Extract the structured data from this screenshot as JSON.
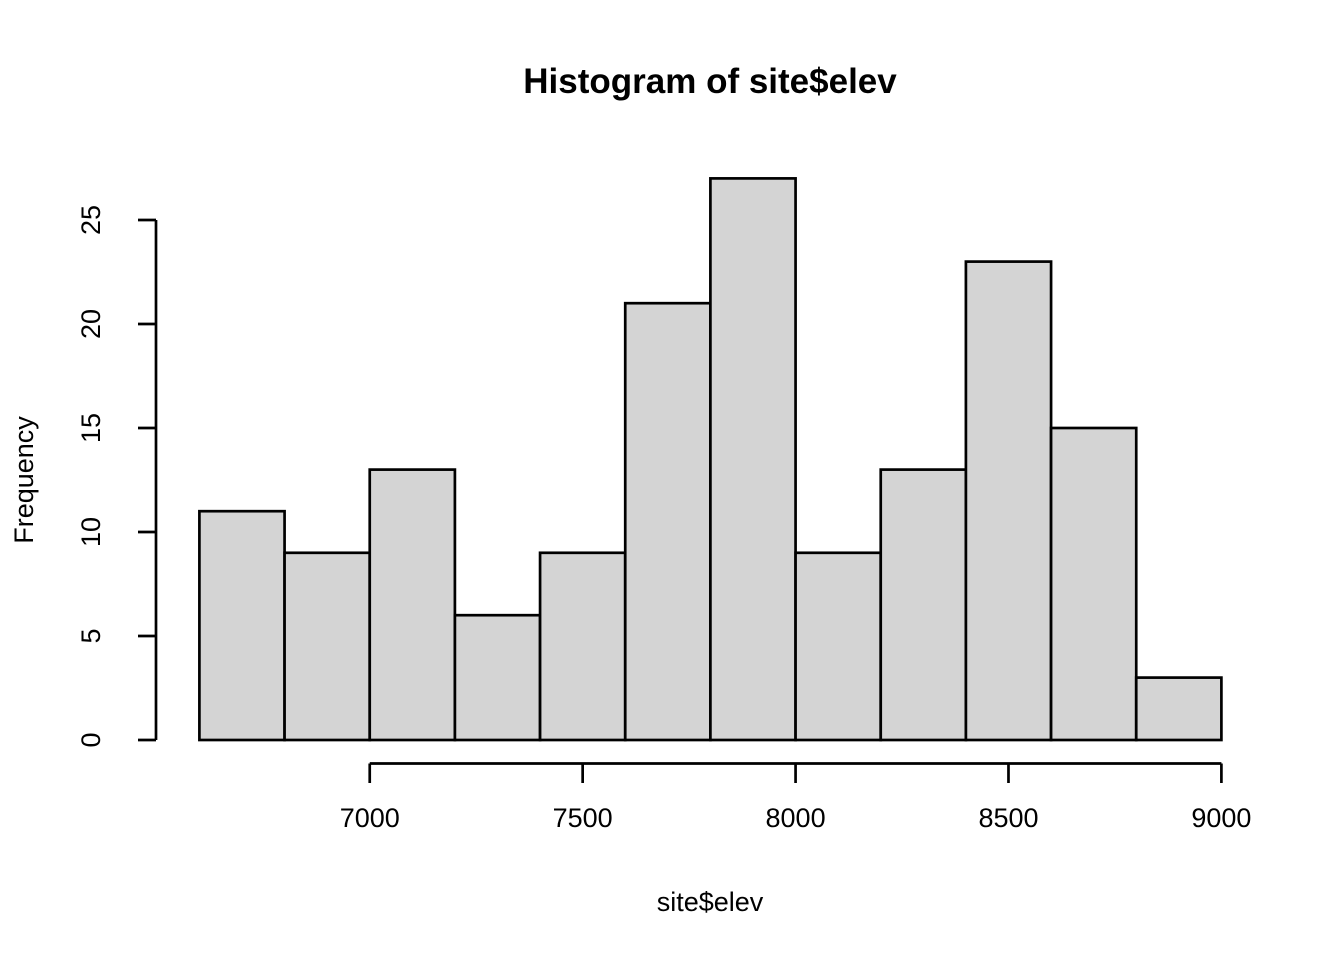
{
  "chart_data": {
    "type": "bar",
    "subtype": "histogram",
    "title": "Histogram of site$elev",
    "xlabel": "site$elev",
    "ylabel": "Frequency",
    "bin_edges": [
      6600,
      6800,
      7000,
      7200,
      7400,
      7600,
      7800,
      8000,
      8200,
      8400,
      8600,
      8800,
      9000
    ],
    "counts": [
      11,
      9,
      13,
      6,
      9,
      21,
      27,
      9,
      13,
      23,
      15,
      3
    ],
    "x_ticks": [
      7000,
      7500,
      8000,
      8500,
      9000
    ],
    "y_ticks": [
      0,
      5,
      10,
      15,
      20,
      25
    ],
    "xlim": [
      6600,
      9000
    ],
    "ylim": [
      0,
      27
    ],
    "grid": false,
    "legend": false,
    "colors": {
      "bar_fill": "#d4d4d4",
      "bar_stroke": "#000000",
      "axis": "#000000",
      "text": "#000000",
      "background": "#ffffff"
    }
  }
}
